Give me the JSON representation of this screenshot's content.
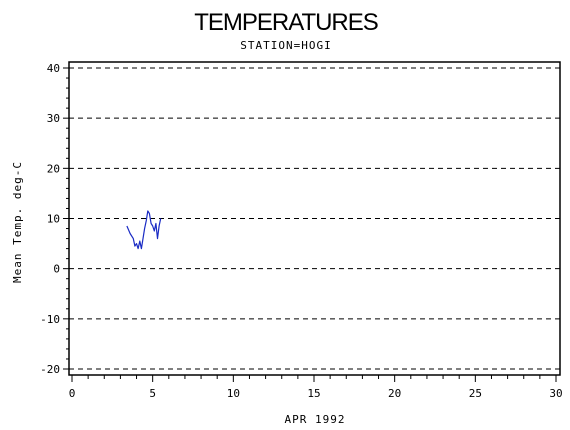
{
  "chart_data": {
    "type": "line",
    "title": "TEMPERATURES",
    "subtitle": "STATION=HOGI",
    "xlabel": "APR 1992",
    "ylabel": "Mean Temp. deg-C",
    "xlim": [
      0,
      30
    ],
    "ylim": [
      -20,
      40
    ],
    "xticks": [
      "0",
      "5",
      "10",
      "15",
      "20",
      "25",
      "30"
    ],
    "yticks": [
      "40",
      "30",
      "20",
      "10",
      "0",
      "-10",
      "-20"
    ],
    "grid": "horizontal dashed at major y ticks",
    "colors": {
      "series": "#1a2bc4",
      "axes": "#000000",
      "grid": "#000000"
    },
    "series": [
      {
        "x": [
          3.4,
          3.6,
          3.8,
          3.9,
          4.0,
          4.1,
          4.2,
          4.3,
          4.4,
          4.5,
          4.6,
          4.7,
          4.8,
          4.9,
          5.0,
          5.1,
          5.2,
          5.3,
          5.4,
          5.5
        ],
        "values": [
          8.5,
          7.0,
          6.0,
          4.5,
          5.0,
          4.0,
          5.5,
          4.0,
          6.0,
          8.0,
          9.5,
          11.5,
          11.0,
          9.0,
          8.5,
          7.5,
          9.0,
          6.0,
          8.5,
          10.0
        ]
      }
    ]
  }
}
